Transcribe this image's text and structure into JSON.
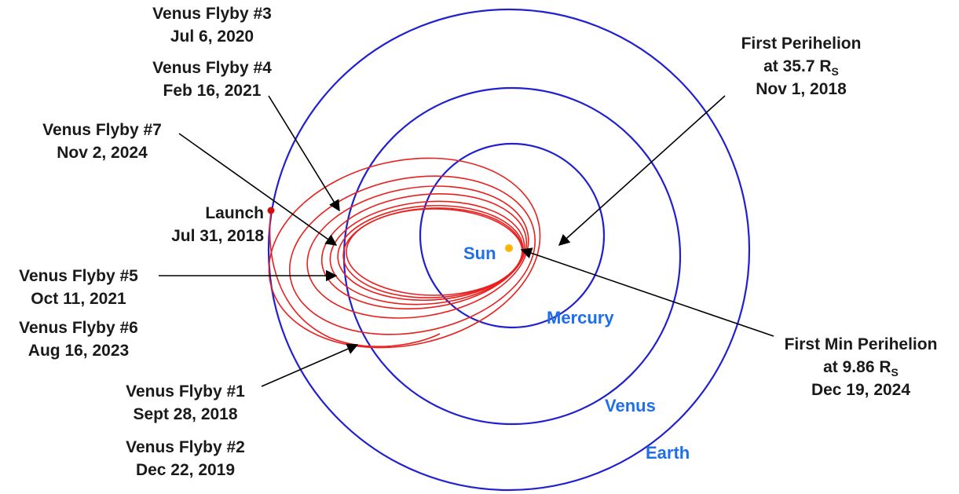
{
  "colors": {
    "orbit": "#2020d0",
    "trajectory": "#e8201e",
    "planet_label": "#1e6fe8",
    "sun": "#ffb400",
    "launch_dot": "#d01010",
    "text": "#1a1a1a",
    "arrow": "#000000"
  },
  "planets": {
    "sun": "Sun",
    "mercury": "Mercury",
    "venus": "Venus",
    "earth": "Earth"
  },
  "events": {
    "flyby3": {
      "title": "Venus Flyby #3",
      "date": "Jul 6, 2020"
    },
    "flyby4": {
      "title": "Venus Flyby #4",
      "date": "Feb 16, 2021"
    },
    "flyby7": {
      "title": "Venus Flyby #7",
      "date": "Nov 2, 2024"
    },
    "launch": {
      "title": "Launch",
      "date": "Jul 31, 2018"
    },
    "flyby5": {
      "title": "Venus Flyby #5",
      "date": "Oct 11, 2021"
    },
    "flyby6": {
      "title": "Venus Flyby #6",
      "date": "Aug 16, 2023"
    },
    "flyby1": {
      "title": "Venus Flyby #1",
      "date": "Sept 28, 2018"
    },
    "flyby2": {
      "title": "Venus Flyby #2",
      "date": "Dec 22, 2019"
    },
    "first_perihelion": {
      "title": "First Perihelion",
      "distance": "at 35.7 R",
      "sub": "S",
      "date": "Nov 1, 2018"
    },
    "first_min_perihelion": {
      "title": "First Min Perihelion",
      "distance": "at 9.86 R",
      "sub": "S",
      "date": "Dec 19, 2024"
    }
  }
}
